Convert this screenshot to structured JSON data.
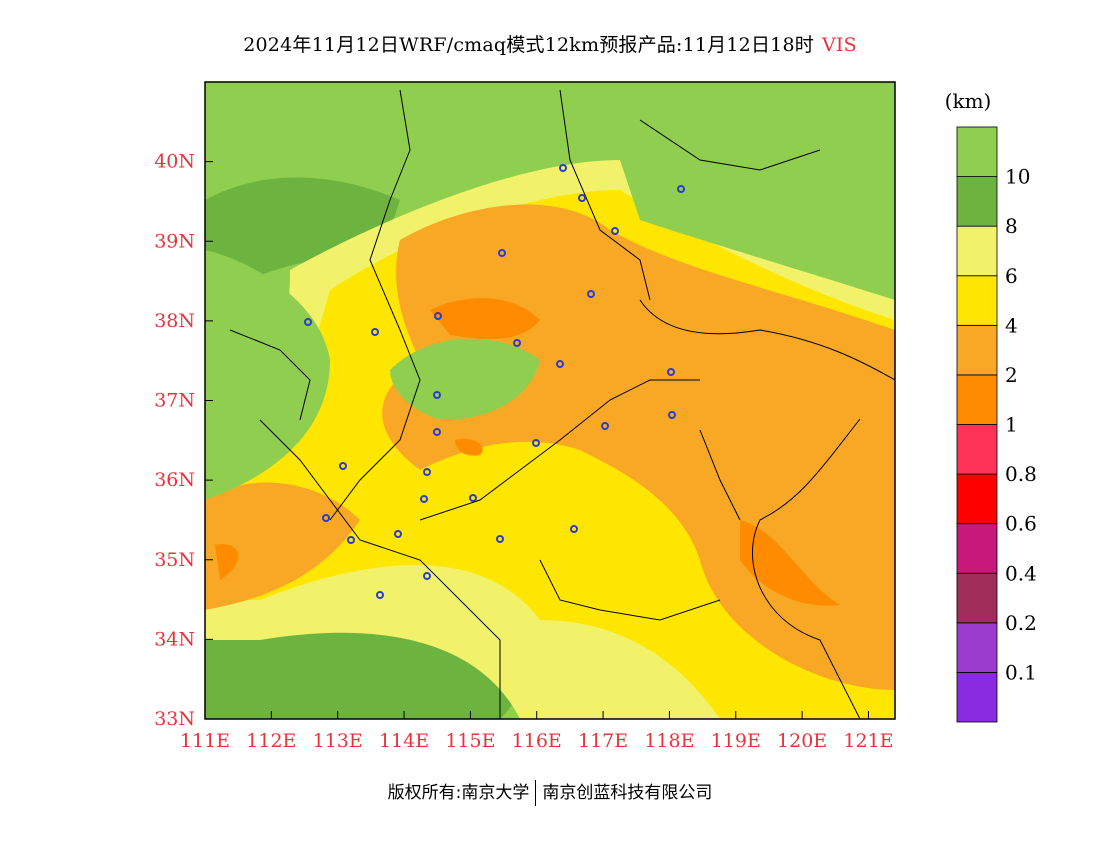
{
  "header": {
    "title": "2024年11月12日WRF/cmaq模式12km预报产品:11月12日18时",
    "variable": "VIS"
  },
  "map": {
    "lon_range": [
      111,
      121.4
    ],
    "lat_range": [
      33,
      41
    ],
    "lon_ticks": [
      "111E",
      "112E",
      "113E",
      "114E",
      "115E",
      "116E",
      "117E",
      "118E",
      "119E",
      "120E",
      "121E"
    ],
    "lat_ticks": [
      "33N",
      "34N",
      "35N",
      "36N",
      "37N",
      "38N",
      "39N",
      "40N"
    ]
  },
  "colorbar": {
    "unit": "(km)",
    "colors": [
      "#8a2be2",
      "#9b3ccf",
      "#a02d5a",
      "#c8187a",
      "#ff0000",
      "#ff3355",
      "#ff8c00",
      "#f9a825",
      "#ffe600",
      "#f2f26a",
      "#6db33f",
      "#8fce4f"
    ],
    "labels": [
      "0.1",
      "0.2",
      "0.4",
      "0.6",
      "0.8",
      "1",
      "2",
      "4",
      "6",
      "8",
      "10"
    ]
  },
  "footer": {
    "left": "版权所有:南京大学",
    "right": "南京创蓝科技有限公司"
  }
}
